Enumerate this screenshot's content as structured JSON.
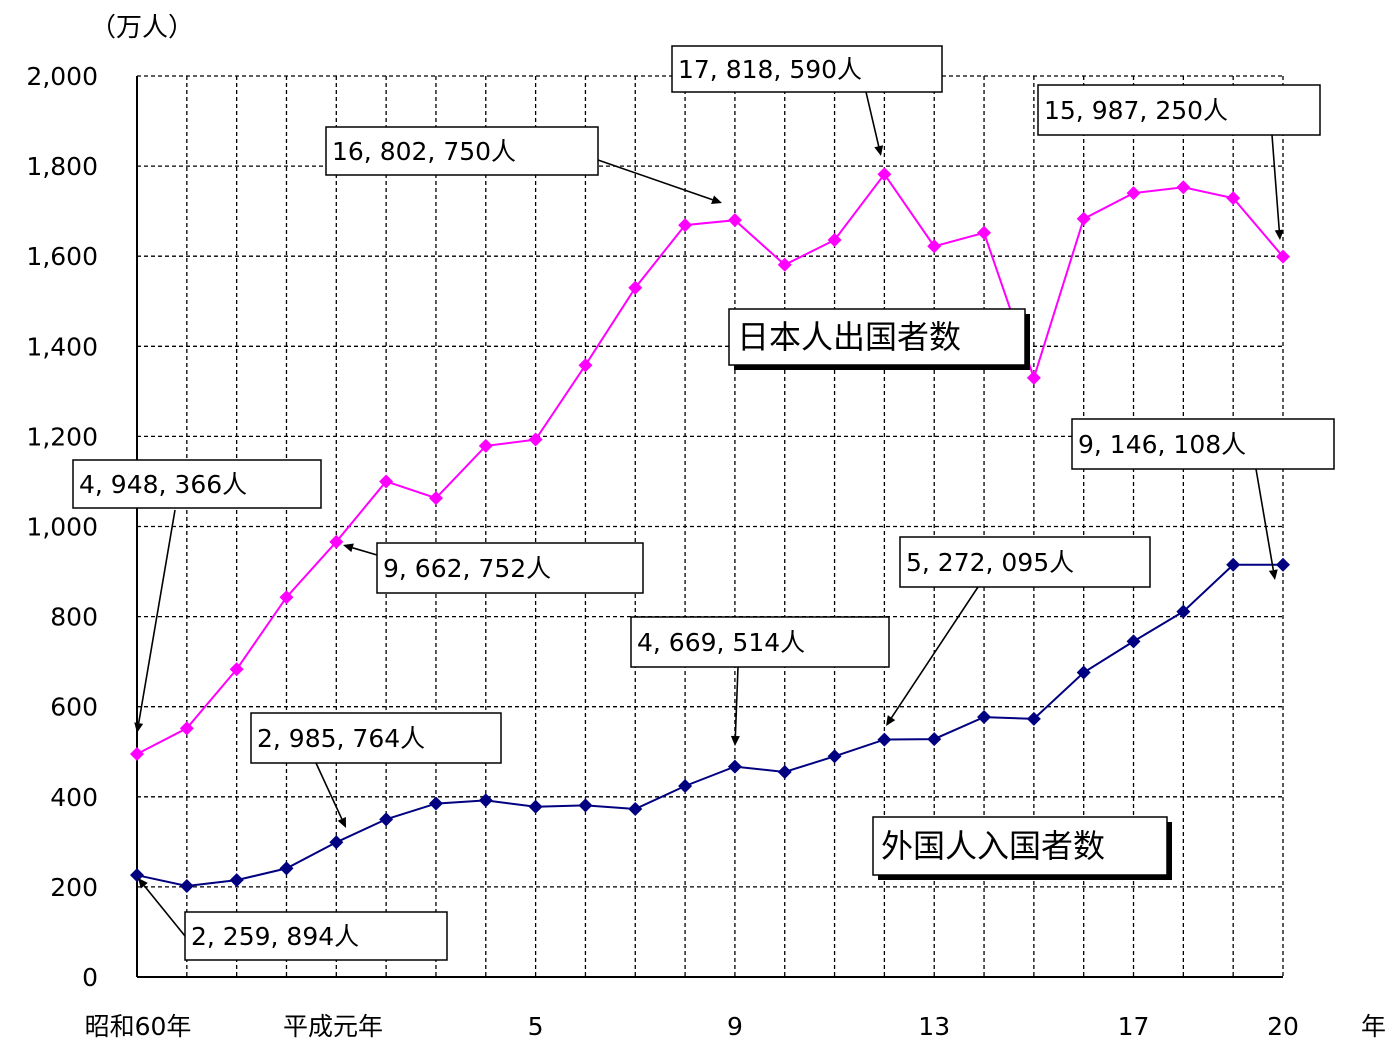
{
  "chart_data": {
    "type": "line",
    "ylabel": "（万人）",
    "xlabel": "年",
    "ylim": [
      0,
      2000
    ],
    "y_ticks": [
      "0",
      "200",
      "400",
      "600",
      "800",
      "1,000",
      "1,200",
      "1,400",
      "1,600",
      "1,800",
      "2,000"
    ],
    "x_tick_labels": [
      {
        "index": 0,
        "label": "昭和60年"
      },
      {
        "index": 4,
        "label": "平成元年"
      },
      {
        "index": 8,
        "label": "5"
      },
      {
        "index": 12,
        "label": "9"
      },
      {
        "index": 16,
        "label": "13"
      },
      {
        "index": 20,
        "label": "17"
      },
      {
        "index": 23,
        "label": "20"
      }
    ],
    "grid": true,
    "points_count": 24,
    "series": [
      {
        "name": "日本人出国者数",
        "color": "#ff00ff",
        "values": [
          495,
          552,
          683,
          843,
          966,
          1100,
          1063,
          1179,
          1193,
          1358,
          1530,
          1669,
          1680,
          1581,
          1636,
          1782,
          1622,
          1652,
          1330,
          1683,
          1740,
          1753,
          1729,
          1599
        ]
      },
      {
        "name": "外国人入国者数",
        "color": "#000080",
        "values": [
          226,
          202,
          215,
          241,
          299,
          350,
          385,
          392,
          378,
          381,
          373,
          424,
          467,
          455,
          490,
          527,
          528,
          577,
          573,
          676,
          745,
          811,
          915,
          915
        ]
      }
    ],
    "annotations": [
      {
        "text": "4, 948, 366人"
      },
      {
        "text": "9, 662, 752人"
      },
      {
        "text": "16, 802, 750人"
      },
      {
        "text": "17, 818, 590人"
      },
      {
        "text": "15, 987, 250人"
      },
      {
        "text": "9, 146, 108人"
      },
      {
        "text": "5, 272, 095人"
      },
      {
        "text": "4, 669, 514人"
      },
      {
        "text": "2, 985, 764人"
      },
      {
        "text": "2, 259, 894人"
      }
    ]
  }
}
